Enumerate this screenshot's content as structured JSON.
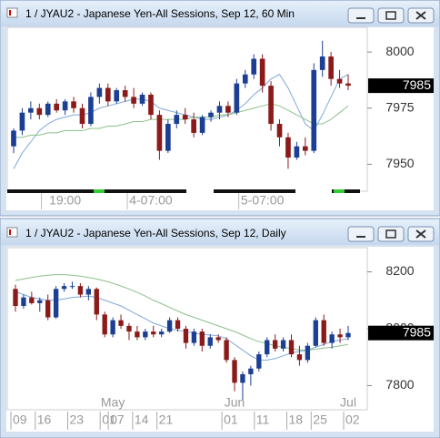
{
  "chart_data": [
    {
      "type": "candlestick",
      "title": "1 / JYAU2 - Japanese Yen-All Sessions, Sep 12, 60 Min",
      "categories": [
        null,
        null,
        null,
        null,
        null,
        null,
        "19:00",
        null,
        null,
        null,
        null,
        null,
        null,
        null,
        null,
        null,
        "4-07:00",
        null,
        null,
        null,
        null,
        null,
        null,
        null,
        null,
        null,
        null,
        null,
        null,
        "5-07:00",
        null,
        null,
        null,
        null,
        null,
        null,
        null,
        null,
        null,
        null
      ],
      "open": [
        7958,
        7965,
        7973,
        7975,
        7972,
        7977,
        7974,
        7978,
        7975,
        7968,
        7980,
        7984,
        7978,
        7983,
        7980,
        7977,
        7981,
        7972,
        7956,
        7968,
        7972,
        7970,
        7964,
        7971,
        7973,
        7976,
        7973,
        7986,
        7990,
        7997,
        7985,
        7968,
        7962,
        7953,
        7958,
        7956,
        7992,
        7998,
        7988,
        7986
      ],
      "high": [
        7966,
        7975,
        7978,
        7977,
        7978,
        7979,
        7979,
        7980,
        7977,
        7982,
        7986,
        7986,
        7984,
        7985,
        7984,
        7982,
        7982,
        7974,
        7970,
        7974,
        7975,
        7973,
        7972,
        7974,
        7978,
        7978,
        7988,
        7992,
        7999,
        7999,
        7987,
        7970,
        7964,
        7960,
        7962,
        7995,
        8005,
        8000,
        7992,
        7990
      ],
      "low": [
        7955,
        7963,
        7970,
        7970,
        7971,
        7973,
        7972,
        7973,
        7966,
        7967,
        7977,
        7976,
        7977,
        7978,
        7975,
        7976,
        7970,
        7952,
        7955,
        7966,
        7968,
        7962,
        7963,
        7969,
        7970,
        7971,
        7972,
        7984,
        7988,
        7982,
        7965,
        7958,
        7948,
        7952,
        7954,
        7955,
        7989,
        7985,
        7984,
        7983
      ],
      "close": [
        7965,
        7973,
        7975,
        7972,
        7977,
        7974,
        7978,
        7975,
        7968,
        7980,
        7984,
        7978,
        7983,
        7980,
        7977,
        7981,
        7972,
        7956,
        7968,
        7972,
        7970,
        7964,
        7971,
        7973,
        7976,
        7973,
        7986,
        7990,
        7997,
        7985,
        7968,
        7962,
        7953,
        7958,
        7956,
        7992,
        7998,
        7988,
        7986,
        7985
      ],
      "lines": [
        {
          "color": "#7fa8d8",
          "values": [
            7948,
            7955,
            7960,
            7965,
            7968,
            7970,
            7971,
            7972,
            7972,
            7973,
            7975,
            7976,
            7977,
            7978,
            7979,
            7979,
            7978,
            7975,
            7974,
            7973,
            7972,
            7971,
            7970,
            7970,
            7971,
            7972,
            7974,
            7977,
            7981,
            7984,
            7988,
            7990,
            7984,
            7976,
            7968,
            7965,
            7972,
            7980,
            7988,
            7990
          ]
        },
        {
          "color": "#8cc08c",
          "values": [
            7962,
            7962,
            7963,
            7963,
            7964,
            7964,
            7965,
            7965,
            7965,
            7966,
            7966,
            7967,
            7967,
            7968,
            7969,
            7969,
            7970,
            7970,
            7970,
            7970,
            7970,
            7971,
            7971,
            7971,
            7972,
            7972,
            7973,
            7974,
            7975,
            7976,
            7977,
            7976,
            7974,
            7972,
            7970,
            7968,
            7968,
            7970,
            7973,
            7976
          ]
        }
      ],
      "up_color": "#1c3f94",
      "down_color": "#8b1a1a",
      "ylim": [
        7938,
        8011
      ],
      "yticks": [
        7950,
        7975,
        8000
      ],
      "last": 7985
    },
    {
      "type": "candlestick",
      "title": "1 / JYAU2 - Japanese Yen-All Sessions, Sep 12, Daily",
      "categories": [
        "09",
        null,
        null,
        "16",
        null,
        null,
        null,
        "23",
        null,
        null,
        null,
        "01",
        "07",
        null,
        null,
        "14",
        null,
        null,
        "21",
        null,
        null,
        null,
        null,
        null,
        null,
        null,
        "01",
        null,
        null,
        null,
        "11",
        null,
        null,
        null,
        "18",
        null,
        null,
        "25",
        null,
        null,
        null,
        "02"
      ],
      "months": [
        null,
        null,
        null,
        null,
        null,
        null,
        null,
        null,
        null,
        null,
        null,
        null,
        "May",
        null,
        null,
        null,
        null,
        null,
        null,
        null,
        null,
        null,
        null,
        null,
        null,
        null,
        null,
        "Jun",
        null,
        null,
        null,
        null,
        null,
        null,
        null,
        null,
        null,
        null,
        null,
        null,
        null,
        "Jul"
      ],
      "open": [
        8140,
        8080,
        8110,
        8090,
        8100,
        8040,
        8140,
        8150,
        8150,
        8120,
        8140,
        8050,
        7980,
        8030,
        8010,
        7990,
        7970,
        7990,
        7980,
        7990,
        8030,
        8000,
        7950,
        7990,
        7940,
        7970,
        7960,
        7890,
        7810,
        7840,
        7860,
        7910,
        7960,
        7930,
        7960,
        7910,
        7890,
        7940,
        8030,
        7950,
        7980,
        7970
      ],
      "high": [
        8155,
        8120,
        8130,
        8110,
        8120,
        8150,
        8160,
        8165,
        8160,
        8150,
        8145,
        8060,
        8040,
        8050,
        8020,
        8010,
        8000,
        8010,
        8000,
        8040,
        8040,
        8010,
        8000,
        8000,
        7980,
        7980,
        7970,
        7900,
        7850,
        7870,
        7920,
        7970,
        7980,
        7970,
        7980,
        7940,
        7950,
        8040,
        8050,
        7990,
        8000,
        8010
      ],
      "low": [
        8060,
        8070,
        8085,
        8060,
        8030,
        8035,
        8130,
        8140,
        8110,
        8100,
        8030,
        7970,
        7970,
        8000,
        7960,
        7960,
        7960,
        7970,
        7970,
        7985,
        7990,
        7930,
        7940,
        7920,
        7930,
        7950,
        7880,
        7780,
        7750,
        7800,
        7850,
        7900,
        7920,
        7920,
        7900,
        7870,
        7880,
        7935,
        7940,
        7930,
        7950,
        7960
      ],
      "close": [
        8080,
        8110,
        8090,
        8100,
        8040,
        8140,
        8150,
        8150,
        8120,
        8140,
        8050,
        7980,
        8030,
        8010,
        7990,
        7970,
        7990,
        7980,
        7990,
        8030,
        8000,
        7950,
        7990,
        7940,
        7970,
        7960,
        7890,
        7810,
        7840,
        7860,
        7910,
        7960,
        7930,
        7960,
        7910,
        7890,
        7940,
        8030,
        7950,
        7980,
        7970,
        7985
      ],
      "lines": [
        {
          "color": "#7fa8d8",
          "values": [
            8130,
            8120,
            8110,
            8105,
            8100,
            8100,
            8105,
            8110,
            8112,
            8115,
            8110,
            8100,
            8090,
            8080,
            8065,
            8050,
            8035,
            8020,
            8010,
            8000,
            7995,
            7990,
            7985,
            7980,
            7978,
            7975,
            7965,
            7945,
            7925,
            7905,
            7890,
            7890,
            7895,
            7905,
            7915,
            7920,
            7925,
            7935,
            7945,
            7955,
            7960,
            7965
          ]
        },
        {
          "color": "#8cc08c",
          "values": [
            8170,
            8175,
            8180,
            8185,
            8188,
            8190,
            8190,
            8188,
            8185,
            8180,
            8175,
            8168,
            8160,
            8150,
            8140,
            8128,
            8115,
            8100,
            8088,
            8075,
            8062,
            8050,
            8040,
            8030,
            8020,
            8010,
            8000,
            7990,
            7978,
            7965,
            7955,
            7948,
            7940,
            7935,
            7930,
            7925,
            7925,
            7928,
            7932,
            7935,
            7940,
            7945
          ]
        }
      ],
      "up_color": "#1c3f94",
      "down_color": "#8b1a1a",
      "ylim": [
        7715,
        8285
      ],
      "yticks": [
        7800,
        8000,
        8200
      ],
      "last": 7985
    }
  ]
}
